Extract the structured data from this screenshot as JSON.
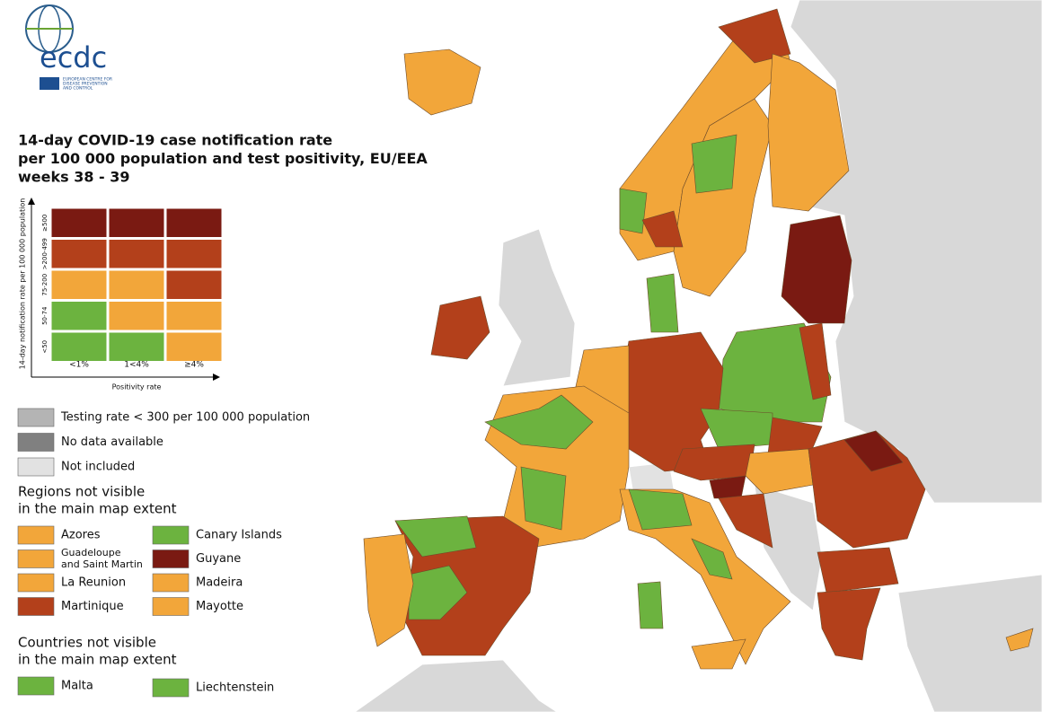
{
  "logo": {
    "acronym": "ecdc",
    "tagline": [
      "EUROPEAN CENTRE FOR",
      "DISEASE PREVENTION",
      "AND CONTROL"
    ]
  },
  "title": [
    "14-day COVID-19 case notification rate",
    "per 100 000 population and test positivity, EU/EEA",
    "weeks 38 - 39"
  ],
  "matrix": {
    "y_label": "14-day notification rate per 100 000 population",
    "rows": [
      "≥500",
      ">200-499",
      "75-200",
      "50-74",
      "<50"
    ],
    "columns": [
      "<1%",
      "1<4%",
      "≥4%"
    ],
    "x_label": "Positivity rate",
    "cells": [
      [
        "#7a1a12",
        "#7a1a12",
        "#7a1a12"
      ],
      [
        "#b3401b",
        "#b3401b",
        "#b3401b"
      ],
      [
        "#f2a63a",
        "#f2a63a",
        "#b3401b"
      ],
      [
        "#6cb33f",
        "#f2a63a",
        "#f2a63a"
      ],
      [
        "#6cb33f",
        "#6cb33f",
        "#f2a63a"
      ]
    ]
  },
  "legend": [
    {
      "label": "Testing rate < 300 per 100 000 population",
      "color": "#b4b4b4"
    },
    {
      "label": "No data available",
      "color": "#808080"
    },
    {
      "label": "Not included",
      "color": "#e2e2e2"
    }
  ],
  "regions": {
    "heading": [
      "Regions not visible",
      "in the main map extent"
    ],
    "items": [
      {
        "label": [
          "Azores"
        ],
        "color": "#f2a63a"
      },
      {
        "label": [
          "Guadeloupe",
          "and Saint Martin"
        ],
        "color": "#f2a63a"
      },
      {
        "label": [
          "La Reunion"
        ],
        "color": "#f2a63a"
      },
      {
        "label": [
          "Martinique"
        ],
        "color": "#b3401b"
      },
      {
        "label": [
          "Canary Islands"
        ],
        "color": "#6cb33f"
      },
      {
        "label": [
          "Guyane"
        ],
        "color": "#7a1a12"
      },
      {
        "label": [
          "Madeira"
        ],
        "color": "#f2a63a"
      },
      {
        "label": [
          "Mayotte"
        ],
        "color": "#f2a63a"
      }
    ]
  },
  "countries": {
    "heading": [
      "Countries not visible",
      "in the main map extent"
    ],
    "items": [
      {
        "label": [
          "Malta"
        ],
        "color": "#6cb33f"
      },
      {
        "label": [
          "Liechtenstein"
        ],
        "color": "#6cb33f"
      }
    ]
  }
}
